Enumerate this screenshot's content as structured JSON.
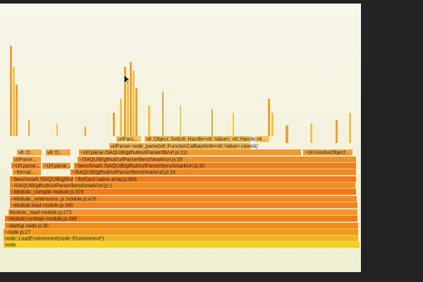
{
  "frames": [
    {
      "label": "node"
    },
    {
      "label": "node::LoadEnvironment(node::Environment*)"
    },
    {
      "label": "~node.js:27"
    },
    {
      "label": "~startup node.js:30"
    },
    {
      "label": "~Module.runMain module.js:499"
    },
    {
      "label": "Module._load module.js:273"
    },
    {
      "label": "~Module.load module.js:345"
    },
    {
      "label": "~Module._extensions..js module.js:476"
    },
    {
      "label": "~Module._compile module.js:378"
    },
    {
      "label": "~/SAQUIB/github/urlParser/benchmark/url.js:1"
    },
    {
      "label": "~benchmark /SAQUIB/github/..."
    },
    {
      "label": "~forEach native array.js:863"
    },
    {
      "label": "~format..."
    },
    {
      "label": "~/SAQUIB/github/urlParser/benchmark/url.js:24"
    },
    {
      "label": "~Url.parse..."
    },
    {
      "label": "~Url.parse..."
    },
    {
      "label": "~benchmark /SAQUIB/github/urlParser/benchmark/url.js:30"
    },
    {
      "label": "urlParse..."
    },
    {
      "label": "~/SAQUIB/github/urlParser/benchmark/url.js:25"
    },
    {
      "label": "v8::O..."
    },
    {
      "label": "v8::O..."
    },
    {
      "label": "~Url.parse /SAQUIB/github/urlParser/lib/url.js:111"
    },
    {
      "label": "~Url.resolveObject..."
    },
    {
      "label": "urlParser node_parse(v8::FunctionCallbackInfo<v8::Value> const&)"
    },
    {
      "label": "urlPars..."
    },
    {
      "label": "v8::Object::Set(v8::Handle<v8::Value>, v8::Handle<..."
    },
    {
      "label": "v8..."
    }
  ]
}
